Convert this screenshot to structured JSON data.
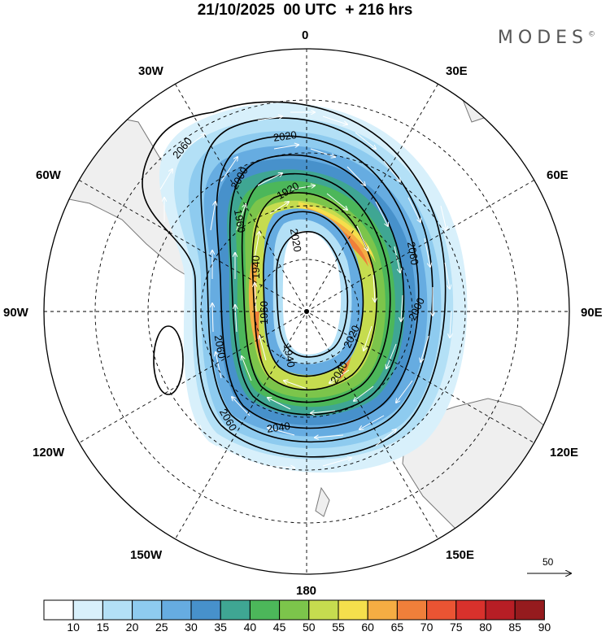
{
  "title": "21/10/2025  00 UTC  + 216 hrs",
  "logo": "MODES",
  "logo_mark": "©",
  "longitude_labels": {
    "top": "0",
    "n30e": "30E",
    "n60e": "60E",
    "e90": "90E",
    "s120e": "120E",
    "s150e": "150E",
    "bottom": "180",
    "s150w": "150W",
    "s120w": "120W",
    "w90": "90W",
    "n60w": "60W",
    "n30w": "30W"
  },
  "contours": [
    {
      "value": "2060",
      "label_positions": "outer"
    },
    {
      "value": "2040"
    },
    {
      "value": "2020"
    },
    {
      "value": "2000"
    },
    {
      "value": "1980"
    },
    {
      "value": "1960"
    },
    {
      "value": "1940"
    },
    {
      "value": "1920"
    }
  ],
  "contour_labels": [
    "2060",
    "2020",
    "2000",
    "1960",
    "1940",
    "1920",
    "2020",
    "2040",
    "2060",
    "2000",
    "2020",
    "2040",
    "2060",
    "2060",
    "1960",
    "1940"
  ],
  "reference_vector": "50",
  "colorbar": {
    "labels": [
      "10",
      "15",
      "20",
      "25",
      "30",
      "35",
      "40",
      "45",
      "50",
      "55",
      "60",
      "65",
      "70",
      "75",
      "80",
      "85",
      "90"
    ],
    "colors": [
      "#ffffff",
      "#d8f0fb",
      "#b3e0f6",
      "#8ecbef",
      "#66ace1",
      "#4791cb",
      "#3fa693",
      "#4cb75a",
      "#7cc54b",
      "#c6dc4f",
      "#f5df4c",
      "#f5ad43",
      "#f07f3a",
      "#ea5433",
      "#d8312c",
      "#b71e25",
      "#951b1e"
    ]
  },
  "colors": {
    "land": "#efefef",
    "coast": "#777777",
    "grid": "#000000"
  }
}
